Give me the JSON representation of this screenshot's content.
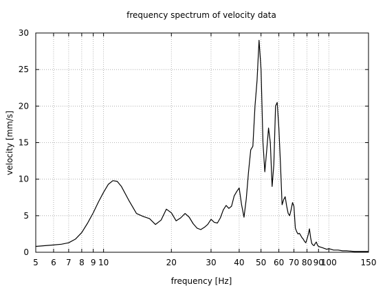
{
  "chart_data": {
    "type": "line",
    "title": "frequency spectrum of velocity data",
    "xlabel": "frequency [Hz]",
    "ylabel": "velocity [mm/s]",
    "x_scale": "log",
    "xlim": [
      5,
      150
    ],
    "ylim": [
      0,
      30
    ],
    "grid": true,
    "x_ticks": [
      5,
      6,
      7,
      8,
      9,
      10,
      20,
      30,
      40,
      50,
      60,
      70,
      80,
      90,
      100,
      150
    ],
    "x_tick_labels": [
      "5",
      "6",
      "7",
      "8",
      "9",
      "10",
      "20",
      "30",
      "40",
      "50",
      "60",
      "70",
      "80",
      "90",
      "100",
      "150"
    ],
    "y_ticks": [
      0,
      5,
      10,
      15,
      20,
      25,
      30
    ],
    "y_tick_labels": [
      "0",
      "5",
      "10",
      "15",
      "20",
      "25",
      "30"
    ],
    "series": [
      {
        "color": "#000000",
        "x": [
          5,
          5.5,
          6,
          6.5,
          7,
          7.5,
          8,
          8.5,
          9,
          9.5,
          10,
          10.5,
          11,
          11.5,
          12,
          13,
          14,
          15,
          16,
          17,
          18,
          19,
          20,
          21,
          22,
          23,
          24,
          25,
          26,
          27,
          28,
          29,
          30,
          31,
          32,
          33,
          34,
          35,
          36,
          37,
          38,
          39,
          40,
          41,
          42,
          43,
          44,
          45,
          46,
          47,
          48,
          49,
          50,
          51,
          52,
          53,
          54,
          55,
          56,
          57,
          58,
          59,
          60,
          61,
          62,
          63,
          64,
          65,
          66,
          67,
          68,
          69,
          70,
          71,
          72,
          73,
          74,
          75,
          76,
          77,
          78,
          79,
          80,
          81,
          82,
          83,
          84,
          85,
          86,
          87,
          88,
          89,
          90,
          92,
          94,
          96,
          98,
          100,
          105,
          110,
          115,
          120,
          125,
          130,
          140,
          150
        ],
        "y": [
          0.8,
          0.9,
          1.0,
          1.1,
          1.3,
          1.8,
          2.7,
          4.0,
          5.4,
          6.9,
          8.2,
          9.3,
          9.8,
          9.7,
          9.0,
          7.0,
          5.3,
          4.9,
          4.6,
          3.8,
          4.4,
          5.9,
          5.4,
          4.3,
          4.7,
          5.3,
          4.8,
          3.9,
          3.3,
          3.1,
          3.4,
          3.8,
          4.5,
          4.1,
          4.0,
          4.7,
          5.8,
          6.4,
          6.0,
          6.3,
          7.7,
          8.3,
          8.8,
          6.5,
          4.8,
          7.3,
          11.0,
          14.0,
          14.5,
          20.0,
          23.5,
          29.0,
          25.0,
          15.0,
          11.0,
          14.0,
          17.0,
          15.0,
          9.0,
          12.0,
          20.0,
          20.5,
          17.0,
          12.0,
          6.5,
          7.2,
          7.6,
          6.3,
          5.3,
          5.0,
          5.8,
          6.8,
          6.3,
          3.3,
          2.8,
          2.5,
          2.6,
          2.3,
          2.0,
          1.8,
          1.5,
          1.3,
          1.8,
          2.4,
          3.2,
          2.0,
          1.2,
          1.0,
          0.9,
          1.2,
          1.4,
          1.0,
          0.8,
          0.7,
          0.6,
          0.5,
          0.4,
          0.5,
          0.3,
          0.3,
          0.2,
          0.2,
          0.15,
          0.1,
          0.1,
          0.1
        ]
      }
    ]
  }
}
